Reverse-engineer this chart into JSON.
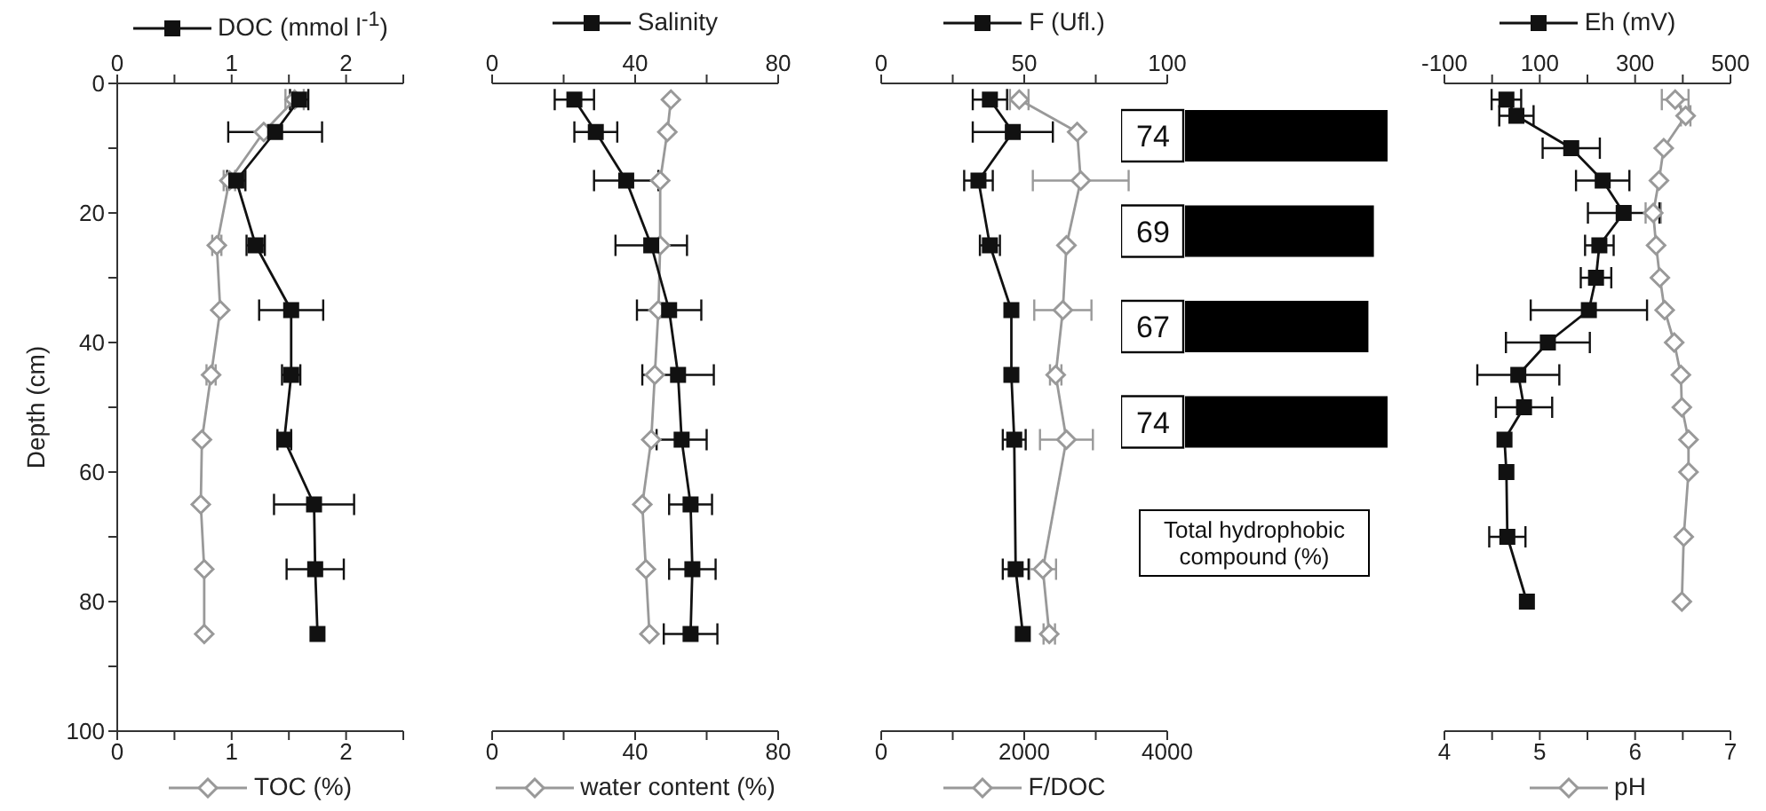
{
  "chart_data": [
    {
      "type": "line",
      "ylabel": "Depth (cm)",
      "ylim": [
        100,
        0
      ],
      "yticks": [
        0,
        {
          "value": 10,
          "label": null
        },
        20,
        {
          "value": 30,
          "label": null
        },
        40,
        {
          "value": 50,
          "label": null
        },
        60,
        {
          "value": 70,
          "label": null
        },
        80,
        {
          "value": 90,
          "label": null
        },
        100
      ],
      "xlim": [
        0,
        2.5
      ],
      "xticks": [
        0,
        {
          "value": 0.5,
          "label": null
        },
        1,
        {
          "value": 1.5,
          "label": null
        },
        2,
        {
          "value": 2.5,
          "label": null
        }
      ],
      "x2lim": [
        0,
        2.5
      ],
      "x2ticks": [
        0,
        {
          "value": 0.5,
          "label": null
        },
        1,
        {
          "value": 1.5,
          "label": null
        },
        2,
        {
          "value": 2.5,
          "label": null
        }
      ],
      "legend": "top",
      "series": [
        {
          "name": "DOC (mmol l$^{-1}$)",
          "color": "#111111",
          "marker": "square",
          "axis": "x2",
          "x": [
            1.59,
            1.38,
            1.04,
            1.21,
            1.52,
            1.52,
            1.46,
            1.72,
            1.73,
            1.75
          ],
          "values": [
            2.5,
            7.5,
            15,
            25,
            35,
            45,
            55,
            65,
            75,
            85
          ],
          "xerrors": [
            0.08,
            0.41,
            0.08,
            0.08,
            0.28,
            0.08,
            0.06,
            0.35,
            0.25,
            null
          ]
        },
        {
          "name": "TOC (%)",
          "color": "#999999",
          "marker": "diamond",
          "x": [
            1.55,
            1.28,
            0.98,
            0.87,
            0.9,
            0.82,
            0.74,
            0.73,
            0.76,
            0.76
          ],
          "values": [
            2.5,
            7.5,
            15,
            25,
            35,
            45,
            55,
            65,
            75,
            85
          ],
          "xerrors": [
            0.08,
            null,
            0.05,
            0.04,
            null,
            0.04,
            null,
            null,
            null,
            null
          ]
        }
      ]
    },
    {
      "type": "line",
      "ylim": [
        100,
        0
      ],
      "tick_labels": "x",
      "xlim": [
        0,
        80
      ],
      "xticks": [
        0,
        {
          "value": 20,
          "label": null
        },
        40,
        {
          "value": 60,
          "label": null
        },
        80
      ],
      "x2lim": [
        0,
        80
      ],
      "x2ticks": [
        0,
        {
          "value": 20,
          "label": null
        },
        40,
        {
          "value": 60,
          "label": null
        },
        80
      ],
      "legend": "top",
      "series": [
        {
          "name": "Salinity",
          "color": "#111111",
          "marker": "square",
          "axis": "x2",
          "x": [
            23,
            29,
            37.5,
            44.5,
            49.5,
            52,
            53,
            55.5,
            56,
            55.5
          ],
          "values": [
            2.5,
            7.5,
            15,
            25,
            35,
            45,
            55,
            65,
            75,
            85
          ],
          "xerrors": [
            5.5,
            6,
            9,
            10,
            9,
            10,
            7,
            6,
            6.5,
            7.5
          ]
        },
        {
          "name": "water content (%)",
          "color": "#999999",
          "marker": "diamond",
          "x": [
            50,
            49,
            47,
            47,
            46.5,
            45.5,
            44.5,
            42,
            43,
            44
          ],
          "values": [
            2.5,
            7.5,
            15,
            25,
            35,
            45,
            55,
            65,
            75,
            85
          ]
        }
      ]
    },
    {
      "type": "line",
      "ylim": [
        100,
        0
      ],
      "tick_labels": "x",
      "xlim": [
        0,
        4000
      ],
      "xticks": [
        0,
        {
          "value": 1000,
          "label": null
        },
        2000,
        {
          "value": 3000,
          "label": null
        },
        4000
      ],
      "x2lim": [
        0,
        100
      ],
      "x2ticks": [
        0,
        {
          "value": 25,
          "label": null
        },
        50,
        {
          "value": 75,
          "label": null
        },
        100
      ],
      "legend": "top",
      "series": [
        {
          "name": "F (Ufl.)",
          "color": "#111111",
          "marker": "square",
          "axis": "x2",
          "x": [
            38,
            46,
            34,
            38,
            45.5,
            45.5,
            46.5,
            47,
            49.5
          ],
          "values": [
            2.5,
            7.5,
            15,
            25,
            35,
            45,
            55,
            75,
            85
          ],
          "xerrors": [
            6,
            14,
            5,
            3.5,
            null,
            null,
            4,
            4.5,
            null
          ]
        },
        {
          "name": "F/DOC",
          "color": "#999999",
          "marker": "diamond",
          "x": [
            1930,
            2740,
            2790,
            2590,
            2540,
            2440,
            2590,
            2260,
            2350
          ],
          "values": [
            2.5,
            7.5,
            15,
            25,
            35,
            45,
            55,
            75,
            85
          ],
          "xerrors": [
            130,
            null,
            670,
            null,
            400,
            80,
            370,
            185,
            80
          ]
        }
      ]
    },
    {
      "type": "line",
      "ylim": [
        100,
        0
      ],
      "tick_labels": "x",
      "xlim": [
        4,
        7
      ],
      "xticks": [
        4,
        {
          "value": 4.5,
          "label": null
        },
        5,
        {
          "value": 5.5,
          "label": null
        },
        6,
        {
          "value": 6.5,
          "label": null
        },
        7
      ],
      "x2lim": [
        -100,
        500
      ],
      "x2ticks": [
        -100,
        {
          "value": 0,
          "label": null
        },
        100,
        {
          "value": 200,
          "label": null
        },
        300,
        {
          "value": 400,
          "label": null
        },
        500
      ],
      "legend": "top",
      "series": [
        {
          "name": "Eh (mV)",
          "color": "#111111",
          "marker": "square",
          "axis": "x2",
          "x": [
            30,
            51,
            166,
            232,
            276,
            225,
            218,
            203,
            117,
            55,
            67,
            26,
            30,
            32,
            73
          ],
          "values": [
            2.5,
            5,
            10,
            15,
            20,
            25,
            30,
            35,
            40,
            45,
            50,
            55,
            60,
            70,
            80
          ],
          "xerrors": [
            31,
            36,
            60,
            56,
            75,
            30,
            32,
            122,
            88,
            86,
            59,
            null,
            null,
            38,
            null
          ]
        },
        {
          "name": "pH",
          "color": "#999999",
          "marker": "diamond",
          "x": [
            6.42,
            6.53,
            6.3,
            6.25,
            6.19,
            6.22,
            6.26,
            6.31,
            6.41,
            6.48,
            6.49,
            6.56,
            6.56,
            6.51,
            6.49
          ],
          "values": [
            2.5,
            5,
            10,
            15,
            20,
            25,
            30,
            35,
            40,
            45,
            50,
            55,
            60,
            70,
            80
          ],
          "xerrors": [
            0.14,
            0.05,
            null,
            null,
            0.08,
            null,
            null,
            null,
            null,
            null,
            null,
            null,
            null,
            null,
            null
          ]
        }
      ]
    },
    {
      "type": "bar",
      "orientation": "horizontal",
      "categories": [
        null,
        null,
        null,
        null
      ],
      "tick_labels": false,
      "values": [
        74,
        69,
        67,
        74
      ],
      "color": "#000000",
      "data_labels": true,
      "annotations": [
        "Total hydrophobic compound (%)"
      ]
    }
  ]
}
